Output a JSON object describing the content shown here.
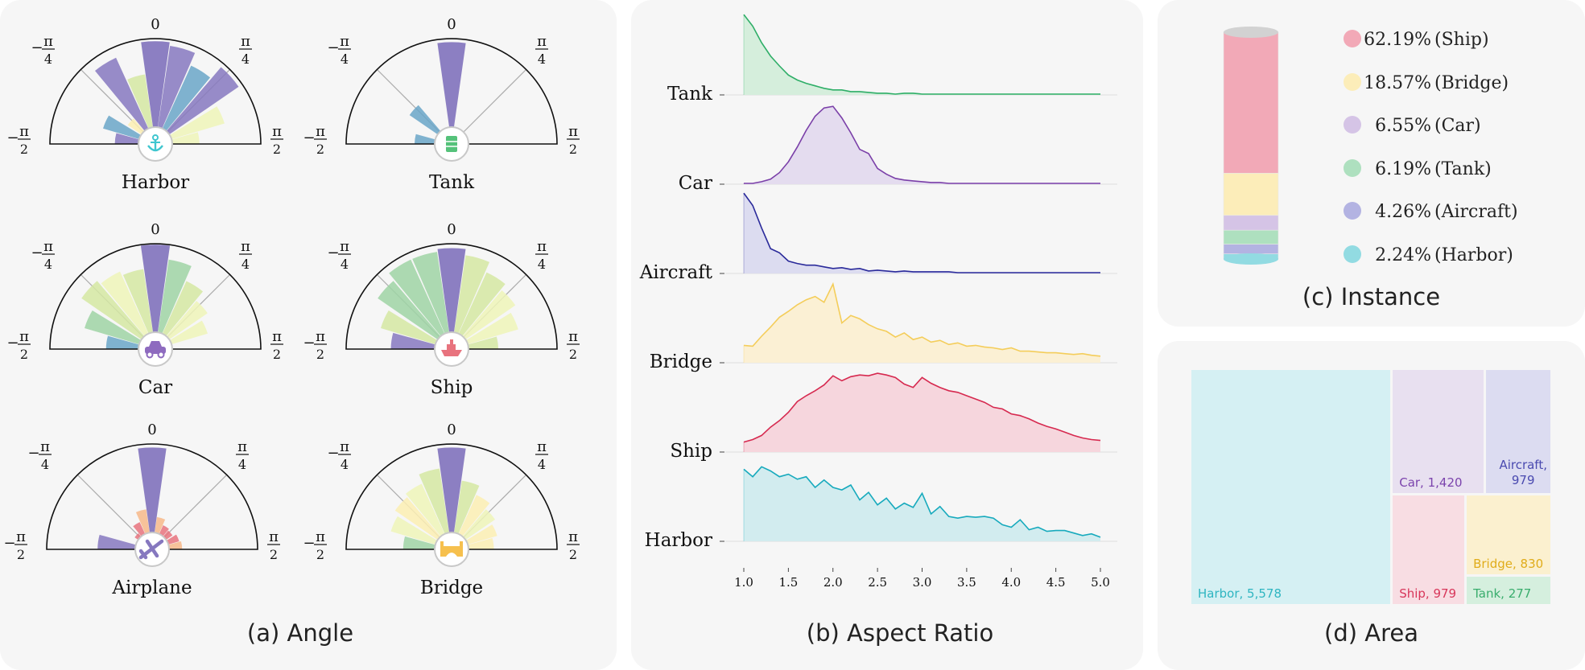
{
  "panels": {
    "angle": {
      "caption": "(a) Angle"
    },
    "aspect": {
      "caption": "(b) Aspect Ratio"
    },
    "instance": {
      "caption": "(c) Instance"
    },
    "area": {
      "caption": "(d) Area"
    }
  },
  "axis_labels": {
    "top": "0",
    "minus_quarter": "π",
    "minus_quarter_sign": "−",
    "plus_quarter": "π",
    "half": "π",
    "four": "4",
    "two": "2"
  },
  "chart_data": [
    {
      "id": "angle",
      "type": "polar-bar",
      "angle_range": [
        "-π/2",
        "π/2"
      ],
      "palette": [
        "#8678bf",
        "#6aa6c8",
        "#9fd4a4",
        "#d5e7a2",
        "#eef4b8",
        "#fbeeb3",
        "#f7b88a",
        "#e8737e"
      ],
      "bin_centers_deg": [
        -82,
        -66,
        -48,
        -32,
        -16,
        0,
        16,
        32,
        48,
        66,
        82
      ],
      "subplots": [
        {
          "name": "Harbor",
          "icon": "anchor-icon",
          "icon_color": "#3fc6cf",
          "values": [
            0.26,
            0.42,
            0.18,
            0.88,
            0.6,
            0.97,
            0.93,
            0.78,
            0.95,
            0.62,
            0.3
          ],
          "colors": [
            0,
            1,
            5,
            0,
            3,
            0,
            0,
            1,
            0,
            4,
            4
          ]
        },
        {
          "name": "Tank",
          "icon": "tank-icon",
          "icon_color": "#55c27a",
          "values": [
            0.22,
            0,
            0.38,
            0,
            0,
            0.96,
            0,
            0,
            0,
            0,
            0
          ],
          "colors": [
            1,
            1,
            1,
            1,
            1,
            0,
            1,
            1,
            1,
            1,
            1
          ]
        },
        {
          "name": "Car",
          "icon": "car-icon",
          "icon_color": "#8e6bbf",
          "values": [
            0.36,
            0.64,
            0.82,
            0.77,
            0.72,
            0.99,
            0.83,
            0.65,
            0.52,
            0.42,
            0
          ],
          "colors": [
            1,
            2,
            3,
            4,
            3,
            0,
            2,
            3,
            4,
            4,
            4
          ]
        },
        {
          "name": "Ship",
          "icon": "ship-icon",
          "icon_color": "#e8737e",
          "values": [
            0.49,
            0.64,
            0.82,
            0.92,
            0.92,
            0.95,
            0.88,
            0.76,
            0.68,
            0.59,
            0.33
          ],
          "colors": [
            0,
            3,
            2,
            2,
            2,
            0,
            3,
            3,
            4,
            4,
            3
          ]
        },
        {
          "name": "Airplane",
          "icon": "airplane-icon",
          "icon_color": "#8678bf",
          "values": [
            0.42,
            0,
            0.04,
            0.14,
            0.26,
            0.96,
            0.17,
            0.1,
            0.08,
            0.12,
            0.14
          ],
          "colors": [
            0,
            0,
            7,
            7,
            6,
            0,
            6,
            7,
            7,
            7,
            6
          ]
        },
        {
          "name": "Bridge",
          "icon": "bridge-icon",
          "icon_color": "#f6c04e",
          "values": [
            0.35,
            0.52,
            0.58,
            0.62,
            0.73,
            0.96,
            0.59,
            0.48,
            0.4,
            0.34,
            0.28
          ],
          "colors": [
            2,
            4,
            5,
            4,
            3,
            0,
            3,
            5,
            4,
            5,
            5
          ]
        }
      ]
    },
    {
      "id": "aspect",
      "type": "area",
      "xlim": [
        1.0,
        5.0
      ],
      "xticks": [
        "1.0",
        "1.5",
        "2.0",
        "2.5",
        "3.0",
        "3.5",
        "4.0",
        "4.5",
        "5.0"
      ],
      "series": [
        {
          "name": "Tank",
          "color": "#2eae67",
          "fill": "#d5eedc",
          "values": [
            0.97,
            0.83,
            0.63,
            0.47,
            0.35,
            0.24,
            0.18,
            0.14,
            0.11,
            0.08,
            0.06,
            0.06,
            0.04,
            0.04,
            0.03,
            0.02,
            0.02,
            0.01,
            0.02,
            0.02,
            0.01,
            0.01,
            0.01,
            0.01,
            0.01,
            0.01,
            0.01,
            0.01,
            0.01,
            0.01,
            0.01,
            0.01,
            0.01,
            0.01,
            0.01,
            0.01,
            0.01,
            0.01,
            0.01,
            0.01,
            0.01
          ]
        },
        {
          "name": "Car",
          "color": "#7a3fa8",
          "fill": "#e4dcef",
          "values": [
            0.01,
            0.01,
            0.03,
            0.06,
            0.14,
            0.27,
            0.45,
            0.65,
            0.82,
            0.92,
            0.94,
            0.8,
            0.62,
            0.42,
            0.37,
            0.19,
            0.12,
            0.07,
            0.05,
            0.04,
            0.03,
            0.02,
            0.02,
            0.01,
            0.01,
            0.01,
            0.01,
            0.01,
            0.01,
            0.01,
            0.01,
            0.01,
            0.01,
            0.01,
            0.01,
            0.01,
            0.01,
            0.01,
            0.01,
            0.01,
            0.01
          ]
        },
        {
          "name": "Aircraft",
          "color": "#2a2a9a",
          "fill": "#dcdcf0",
          "values": [
            0.97,
            0.82,
            0.55,
            0.3,
            0.25,
            0.15,
            0.12,
            0.1,
            0.1,
            0.08,
            0.06,
            0.07,
            0.05,
            0.06,
            0.03,
            0.04,
            0.03,
            0.02,
            0.03,
            0.02,
            0.02,
            0.02,
            0.02,
            0.02,
            0.01,
            0.01,
            0.01,
            0.01,
            0.01,
            0.01,
            0.01,
            0.01,
            0.01,
            0.01,
            0.01,
            0.01,
            0.01,
            0.01,
            0.01,
            0.01,
            0.01
          ]
        },
        {
          "name": "Bridge",
          "color": "#f4cd5a",
          "fill": "#fbf0d4",
          "values": [
            0.21,
            0.2,
            0.32,
            0.43,
            0.55,
            0.62,
            0.7,
            0.76,
            0.8,
            0.73,
            0.95,
            0.48,
            0.57,
            0.53,
            0.46,
            0.41,
            0.38,
            0.31,
            0.36,
            0.28,
            0.31,
            0.25,
            0.27,
            0.22,
            0.24,
            0.2,
            0.21,
            0.19,
            0.18,
            0.16,
            0.18,
            0.14,
            0.14,
            0.13,
            0.12,
            0.12,
            0.11,
            0.1,
            0.11,
            0.09,
            0.08
          ]
        },
        {
          "name": "Ship",
          "color": "#d6294f",
          "fill": "#f6d6dd",
          "values": [
            0.12,
            0.15,
            0.2,
            0.3,
            0.38,
            0.48,
            0.61,
            0.68,
            0.74,
            0.81,
            0.92,
            0.86,
            0.91,
            0.93,
            0.92,
            0.95,
            0.93,
            0.9,
            0.82,
            0.78,
            0.9,
            0.83,
            0.78,
            0.74,
            0.72,
            0.68,
            0.64,
            0.6,
            0.54,
            0.52,
            0.46,
            0.44,
            0.4,
            0.35,
            0.31,
            0.28,
            0.24,
            0.2,
            0.17,
            0.15,
            0.14
          ]
        },
        {
          "name": "Harbor",
          "color": "#17aabd",
          "fill": "#d2ecef",
          "values": [
            0.87,
            0.78,
            0.9,
            0.85,
            0.78,
            0.81,
            0.75,
            0.78,
            0.65,
            0.74,
            0.65,
            0.62,
            0.68,
            0.5,
            0.59,
            0.44,
            0.52,
            0.39,
            0.46,
            0.41,
            0.58,
            0.33,
            0.42,
            0.3,
            0.28,
            0.3,
            0.29,
            0.3,
            0.28,
            0.2,
            0.17,
            0.26,
            0.14,
            0.17,
            0.12,
            0.13,
            0.13,
            0.1,
            0.07,
            0.09,
            0.05
          ]
        }
      ]
    },
    {
      "id": "instance",
      "type": "stacked-bar",
      "legend": [
        {
          "label": "62.19% (Ship)",
          "value": 62.19,
          "color": "#f2a9b7"
        },
        {
          "label": "18.57% (Bridge)",
          "value": 18.57,
          "color": "#fcedb9"
        },
        {
          "label": "6.55% (Car)",
          "value": 6.55,
          "color": "#d5c4e6"
        },
        {
          "label": "6.19% (Tank)",
          "value": 6.19,
          "color": "#aee0bf"
        },
        {
          "label": "4.26% (Aircraft)",
          "value": 4.26,
          "color": "#b3b3e2"
        },
        {
          "label": "2.24% (Harbor)",
          "value": 2.24,
          "color": "#92dbe2"
        }
      ]
    },
    {
      "id": "area",
      "type": "treemap",
      "items": [
        {
          "name": "Harbor",
          "label": "Harbor, 5,578",
          "value": 5578,
          "fill": "#d5f0f3",
          "text": "#2fb5c1"
        },
        {
          "name": "Car",
          "label": "Car, 1,420",
          "value": 1420,
          "fill": "#e8e0f0",
          "text": "#7c44ad"
        },
        {
          "name": "Aircraft",
          "label_lines": [
            "Aircraft,",
            "979"
          ],
          "value": 979,
          "fill": "#dcdcf1",
          "text": "#4a4ab0"
        },
        {
          "name": "Ship",
          "label": "Ship, 979",
          "value": 979,
          "fill": "#f8dde3",
          "text": "#d8365a"
        },
        {
          "name": "Bridge",
          "label": "Bridge, 830",
          "value": 830,
          "fill": "#fbf0cf",
          "text": "#e0ac1a"
        },
        {
          "name": "Tank",
          "label": "Tank, 277",
          "value": 277,
          "fill": "#d5efde",
          "text": "#39ad6d"
        }
      ]
    }
  ]
}
